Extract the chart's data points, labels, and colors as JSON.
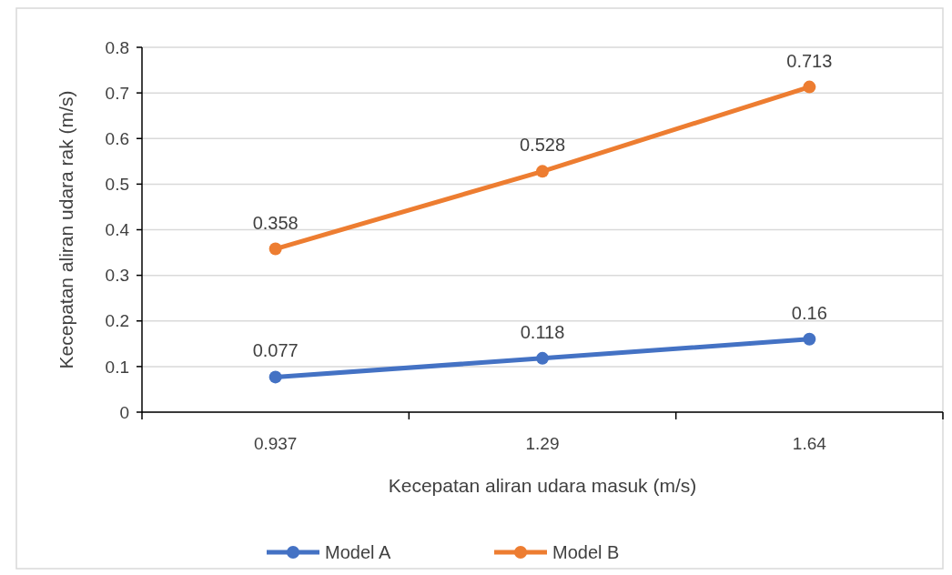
{
  "chart_data": {
    "type": "line",
    "xlabel": "Kecepatan aliran udara masuk (m/s)",
    "ylabel": "Kecepatan aliran udara rak (m/s)",
    "categories": [
      "0.937",
      "1.29",
      "1.64"
    ],
    "series": [
      {
        "name": "Model A",
        "color": "#4472c4",
        "values": [
          0.077,
          0.118,
          0.16
        ]
      },
      {
        "name": "Model B",
        "color": "#ed7d31",
        "values": [
          0.358,
          0.528,
          0.713
        ]
      }
    ],
    "ylim": [
      0,
      0.8
    ],
    "yticks": [
      0,
      0.1,
      0.2,
      0.3,
      0.4,
      0.5,
      0.6,
      0.7,
      0.8
    ],
    "grid": "y",
    "legend": "bottom",
    "marker": "circle",
    "line_style": "solid",
    "data_labels": true
  }
}
